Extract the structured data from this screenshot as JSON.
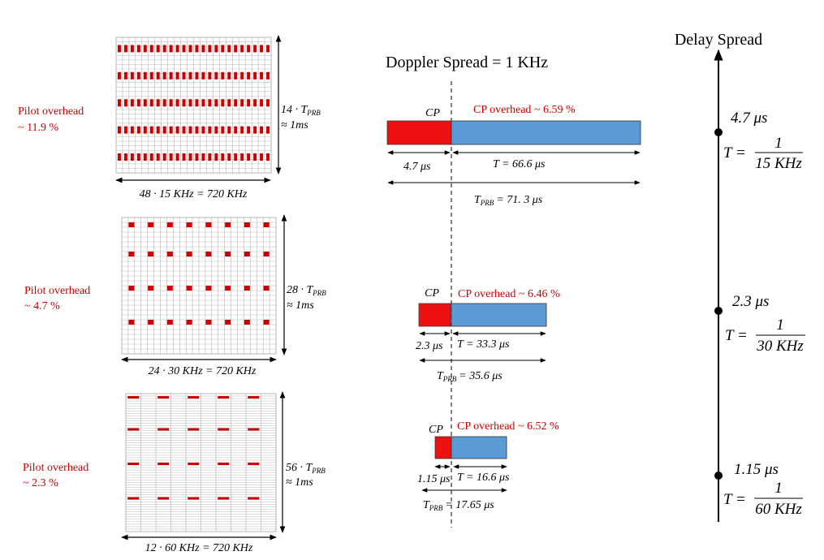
{
  "colors": {
    "pilot": "#cc0000",
    "cp": "#ee1111",
    "payload": "#5b9bd5",
    "grid": "#a6a6a6"
  },
  "doppler_title": "Doppler Spread = 1 KHz",
  "delay_axis_title": "Delay Spread",
  "configs": [
    {
      "pilot_label_1": "Pilot overhead",
      "pilot_label_2": "~ 11.9 %",
      "time_label_1_main": "14 · T",
      "time_label_1_sub": "PRB",
      "time_label_2": "≈ 1ms",
      "freq_label": "48 · 15 KHz = 720 KHz",
      "cp_label": "CP",
      "cp_overhead": "CP overhead ~ 6.59 %",
      "cp_duration": "4.7 μs",
      "t_label": "T =  66.6 μs",
      "tprb_main": "T",
      "tprb_sub": "PRB",
      "tprb_value": "= 71. 3 μs",
      "delay_value": "4.7 μs",
      "spacing_num": "1",
      "spacing_den": "15 KHz",
      "t_eq": "T ="
    },
    {
      "pilot_label_1": "Pilot overhead",
      "pilot_label_2": "~ 4.7 %",
      "time_label_1_main": "28 · T",
      "time_label_1_sub": "PRB",
      "time_label_2": "≈ 1ms",
      "freq_label": "24 · 30 KHz = 720 KHz",
      "cp_label": "CP",
      "cp_overhead": "CP overhead ~ 6.46 %",
      "cp_duration": "2.3 μs",
      "t_label": "T = 33.3 μs",
      "tprb_main": "T",
      "tprb_sub": "PRB",
      "tprb_value": "= 35.6 μs",
      "delay_value": "2.3 μs",
      "spacing_num": "1",
      "spacing_den": "30 KHz",
      "t_eq": "T ="
    },
    {
      "pilot_label_1": "Pilot overhead",
      "pilot_label_2": "~ 2.3 %",
      "time_label_1_main": "56 · T",
      "time_label_1_sub": "PRB",
      "time_label_2": "≈ 1ms",
      "freq_label": "12 · 60 KHz = 720 KHz",
      "cp_label": "CP",
      "cp_overhead": "CP overhead ~ 6.52 %",
      "cp_duration": "1.15 μs",
      "t_label": "T = 16.6 μs",
      "tprb_main": "T",
      "tprb_sub": "PRB",
      "tprb_value": "= 17.65 μs",
      "delay_value": "1.15 μs",
      "spacing_num": "1",
      "spacing_den": "60 KHz",
      "t_eq": "T ="
    }
  ]
}
